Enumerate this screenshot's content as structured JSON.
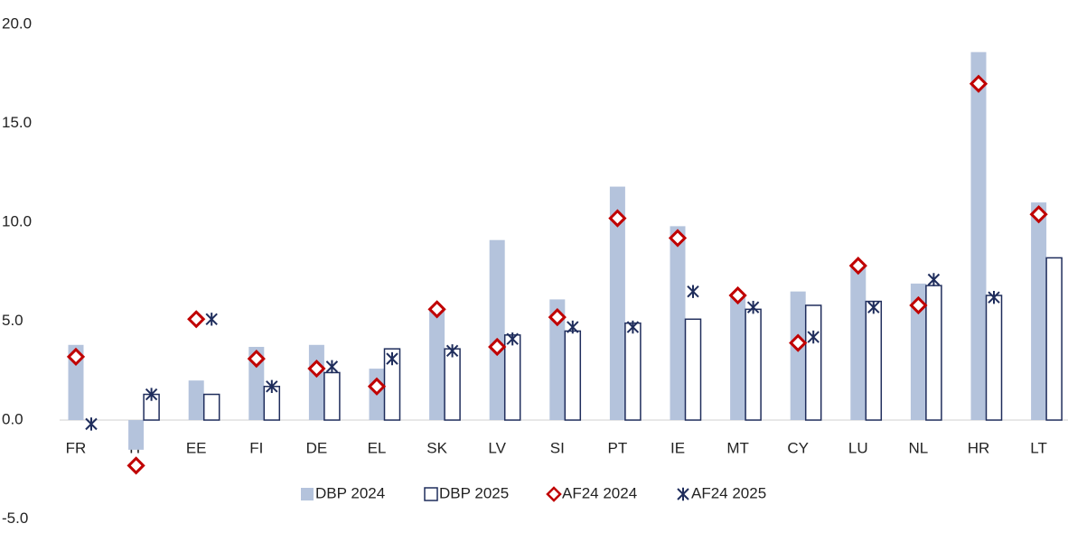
{
  "chart_data": {
    "type": "bar",
    "categories": [
      "FR",
      "IT",
      "EE",
      "FI",
      "DE",
      "EL",
      "SK",
      "LV",
      "SI",
      "PT",
      "IE",
      "MT",
      "CY",
      "LU",
      "NL",
      "HR",
      "LT"
    ],
    "series": [
      {
        "name": "DBP 2024",
        "kind": "bar",
        "color": "#b4c3dc",
        "values": [
          3.8,
          -1.5,
          2.0,
          3.7,
          3.8,
          2.6,
          5.6,
          9.1,
          6.1,
          11.8,
          9.8,
          6.2,
          6.5,
          7.8,
          6.9,
          18.6,
          11.0
        ]
      },
      {
        "name": "DBP 2025",
        "kind": "bar",
        "color": "#ffffff",
        "values": [
          null,
          1.3,
          1.3,
          1.7,
          2.4,
          3.6,
          3.6,
          4.3,
          4.5,
          4.9,
          5.1,
          5.6,
          5.8,
          6.0,
          6.8,
          6.3,
          8.2
        ]
      },
      {
        "name": "AF24 2024",
        "kind": "diamond",
        "color": "#c00000",
        "values": [
          3.2,
          -2.3,
          5.1,
          3.1,
          2.6,
          1.7,
          5.6,
          3.7,
          5.2,
          10.2,
          9.2,
          6.3,
          3.9,
          7.8,
          5.8,
          17.0,
          10.4
        ]
      },
      {
        "name": "AF24 2025",
        "kind": "star",
        "color": "#1f2d5c",
        "values": [
          -0.2,
          1.3,
          5.1,
          1.7,
          2.7,
          3.1,
          3.5,
          4.1,
          4.7,
          4.7,
          6.5,
          5.7,
          4.2,
          5.7,
          7.1,
          6.2,
          null
        ]
      }
    ],
    "ylim": [
      -5,
      20
    ],
    "yticks": [
      {
        "value": -5,
        "label": "-5.0"
      },
      {
        "value": 0,
        "label": "0.0"
      },
      {
        "value": 5,
        "label": "5.0"
      },
      {
        "value": 10,
        "label": "10.0"
      },
      {
        "value": 15,
        "label": "15.0"
      },
      {
        "value": 20,
        "label": "20.0"
      }
    ]
  }
}
